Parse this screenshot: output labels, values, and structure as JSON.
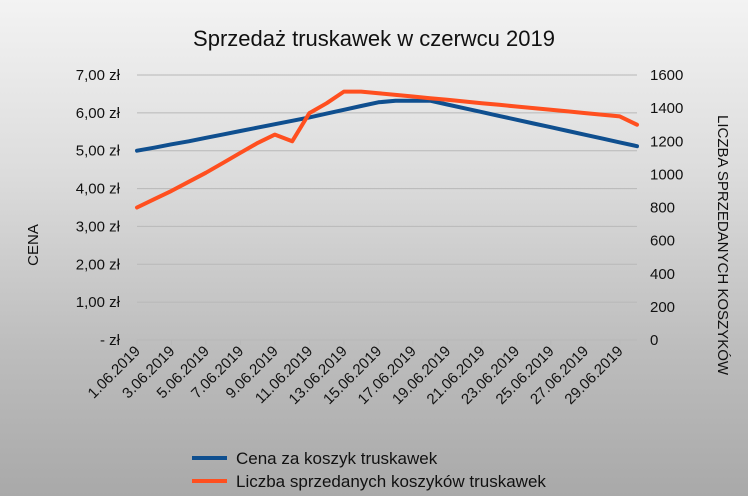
{
  "chart_data": {
    "type": "line",
    "title": "Sprzedaż truskawek w czerwcu 2019",
    "ylabel_left": "CENA",
    "ylabel_right": "LICZBA SPRZEDANYCH KOSZYKÓW",
    "x": [
      "1.06.2019",
      "2.06.2019",
      "3.06.2019",
      "4.06.2019",
      "5.06.2019",
      "6.06.2019",
      "7.06.2019",
      "8.06.2019",
      "9.06.2019",
      "10.06.2019",
      "11.06.2019",
      "12.06.2019",
      "13.06.2019",
      "14.06.2019",
      "15.06.2019",
      "16.06.2019",
      "17.06.2019",
      "18.06.2019",
      "19.06.2019",
      "20.06.2019",
      "21.06.2019",
      "22.06.2019",
      "23.06.2019",
      "24.06.2019",
      "25.06.2019",
      "26.06.2019",
      "27.06.2019",
      "28.06.2019",
      "29.06.2019",
      "30.06.2019"
    ],
    "x_tick_labels": [
      "1.06.2019",
      "3.06.2019",
      "5.06.2019",
      "7.06.2019",
      "9.06.2019",
      "11.06.2019",
      "13.06.2019",
      "15.06.2019",
      "17.06.2019",
      "19.06.2019",
      "21.06.2019",
      "23.06.2019",
      "25.06.2019",
      "27.06.2019",
      "29.06.2019"
    ],
    "y_left": {
      "ylim": [
        0,
        7
      ],
      "ticks": [
        0,
        1,
        2,
        3,
        4,
        5,
        6,
        7
      ],
      "tick_labels": [
        "- zł",
        "1,00 zł",
        "2,00 zł",
        "3,00 zł",
        "4,00 zł",
        "5,00 zł",
        "6,00 zł",
        "7,00 zł"
      ]
    },
    "y_right": {
      "ylim": [
        0,
        1600
      ],
      "ticks": [
        0,
        200,
        400,
        600,
        800,
        1000,
        1200,
        1400,
        1600
      ],
      "tick_labels": [
        "0",
        "200",
        "400",
        "600",
        "800",
        "1000",
        "1200",
        "1400",
        "1600"
      ]
    },
    "series": [
      {
        "name": "Cena za koszyk truskawek",
        "axis": "left",
        "color": "#0f4f8f",
        "values": [
          5.0,
          5.08,
          5.17,
          5.25,
          5.34,
          5.43,
          5.52,
          5.61,
          5.7,
          5.79,
          5.88,
          5.98,
          6.08,
          6.18,
          6.28,
          6.32,
          6.32,
          6.32,
          6.22,
          6.12,
          6.02,
          5.92,
          5.82,
          5.72,
          5.62,
          5.52,
          5.42,
          5.32,
          5.22,
          5.12
        ]
      },
      {
        "name": "Liczba sprzedanych koszyków truskawek",
        "axis": "right",
        "color": "#ff4f1f",
        "values": [
          800,
          850,
          900,
          955,
          1010,
          1070,
          1130,
          1190,
          1240,
          1200,
          1370,
          1430,
          1500,
          1500,
          1490,
          1480,
          1470,
          1460,
          1450,
          1440,
          1430,
          1420,
          1410,
          1400,
          1390,
          1380,
          1370,
          1360,
          1350,
          1300
        ]
      }
    ],
    "grid": true,
    "legend_position": "bottom"
  }
}
